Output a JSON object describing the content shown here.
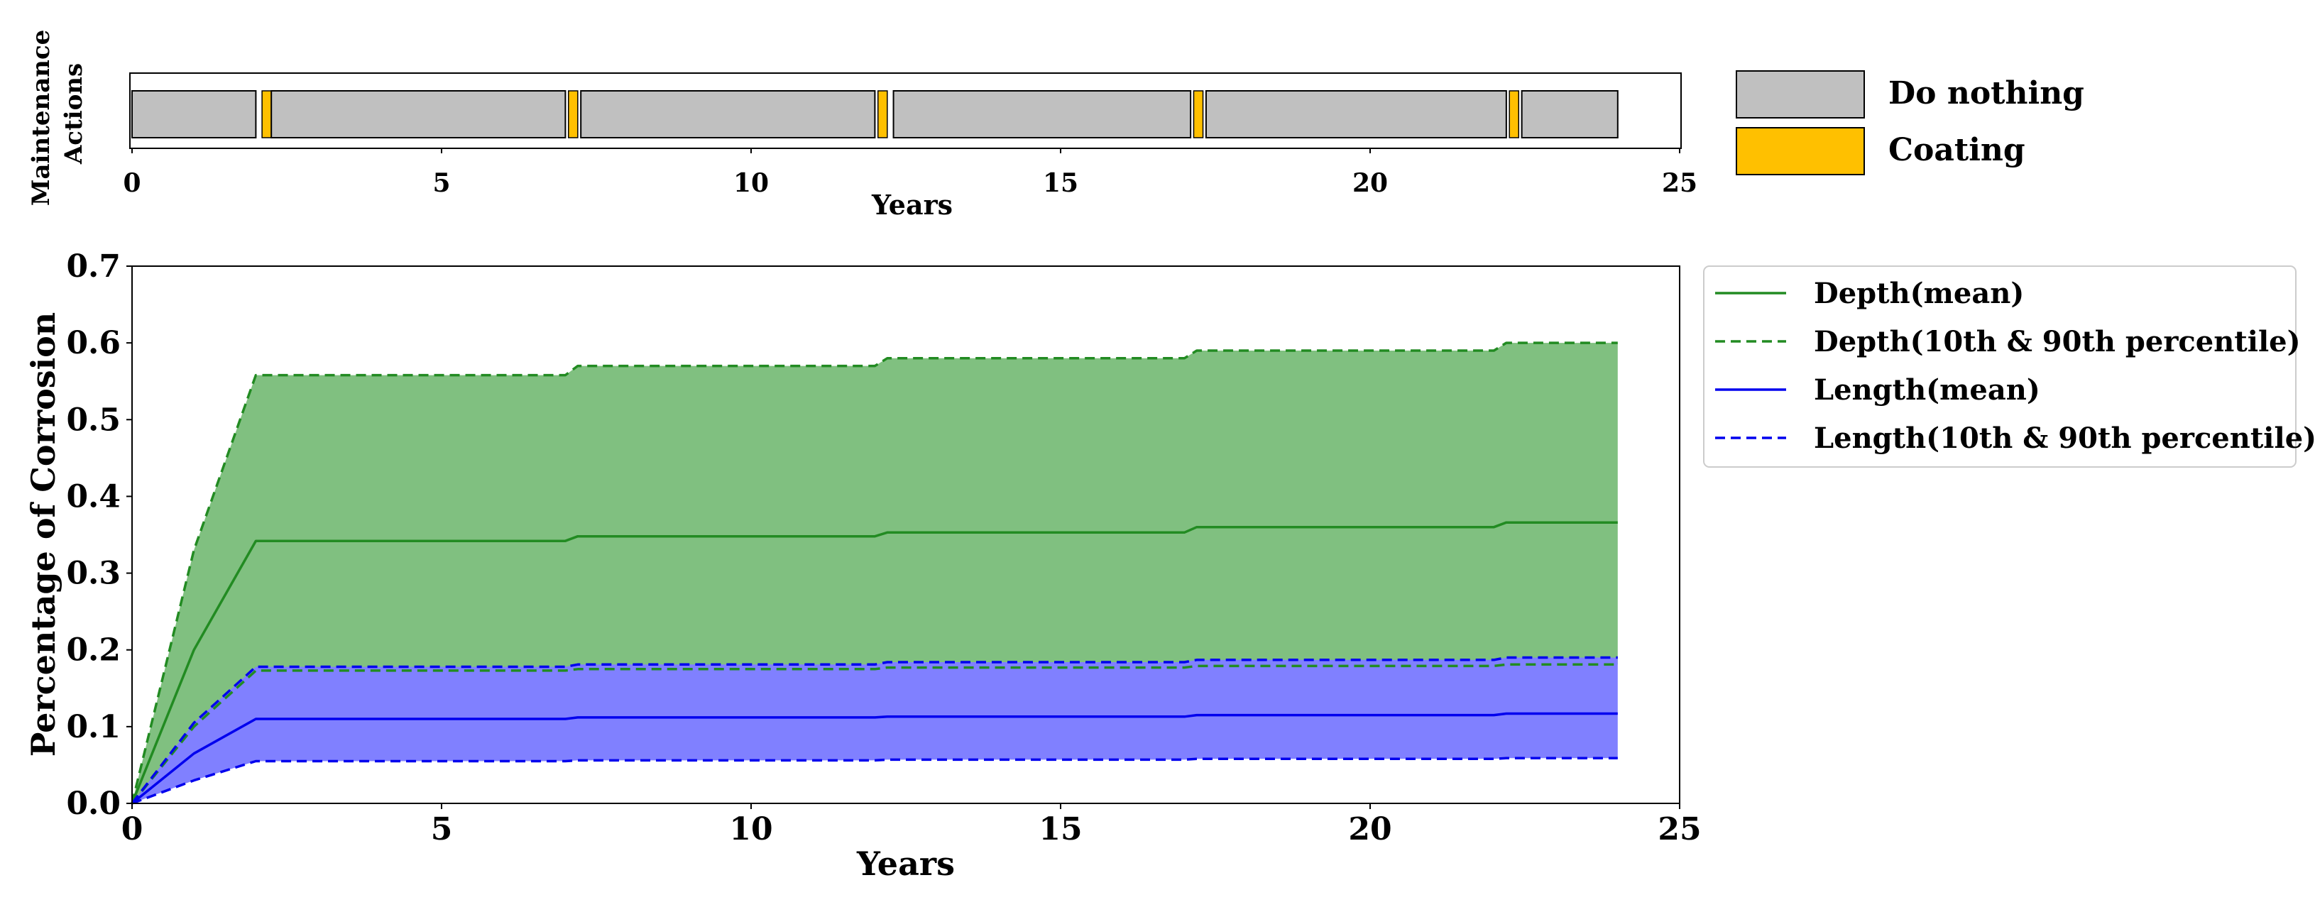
{
  "chart_data": [
    {
      "type": "bar",
      "subtype": "timeline",
      "title": "",
      "xlabel": "Years",
      "ylabel": "Maintenance Actions",
      "xlim": [
        0,
        25
      ],
      "xticks": [
        0,
        5,
        10,
        15,
        20,
        25
      ],
      "segments": [
        {
          "action": "Do nothing",
          "start": 0.0,
          "end": 2.0
        },
        {
          "action": "Coating",
          "start": 2.1,
          "end": 2.25
        },
        {
          "action": "Do nothing",
          "start": 2.25,
          "end": 7.0
        },
        {
          "action": "Coating",
          "start": 7.05,
          "end": 7.2
        },
        {
          "action": "Do nothing",
          "start": 7.25,
          "end": 12.0
        },
        {
          "action": "Coating",
          "start": 12.05,
          "end": 12.2
        },
        {
          "action": "Do nothing",
          "start": 12.3,
          "end": 17.1
        },
        {
          "action": "Coating",
          "start": 17.15,
          "end": 17.3
        },
        {
          "action": "Do nothing",
          "start": 17.35,
          "end": 22.2
        },
        {
          "action": "Coating",
          "start": 22.25,
          "end": 22.4
        },
        {
          "action": "Do nothing",
          "start": 22.45,
          "end": 24.0
        }
      ],
      "legend": {
        "position": "right",
        "entries": [
          {
            "label": "Do nothing",
            "color": "#c0c0c0"
          },
          {
            "label": "Coating",
            "color": "#ffc000"
          }
        ]
      }
    },
    {
      "type": "area",
      "title": "",
      "xlabel": "Years",
      "ylabel": "Percentage of Corrosion",
      "xlim": [
        0,
        25
      ],
      "ylim": [
        0,
        0.7
      ],
      "xticks": [
        0,
        5,
        10,
        15,
        20,
        25
      ],
      "yticks": [
        "0.0",
        "0.1",
        "0.2",
        "0.3",
        "0.4",
        "0.5",
        "0.6",
        "0.7"
      ],
      "grid": false,
      "legend_position": "upper right, outside plot",
      "x": [
        0,
        1,
        2,
        7,
        7.2,
        12,
        12.2,
        17,
        17.2,
        22,
        22.2,
        24
      ],
      "series": [
        {
          "name": "Depth(mean)",
          "style": "solid",
          "color": "#228b22",
          "values": [
            0,
            0.2,
            0.342,
            0.342,
            0.348,
            0.348,
            0.353,
            0.353,
            0.36,
            0.36,
            0.366,
            0.366
          ]
        },
        {
          "name": "Depth(10th & 90th percentile)",
          "style": "dashed",
          "color": "#228b22",
          "band": "upper",
          "values": [
            0,
            0.33,
            0.558,
            0.558,
            0.57,
            0.57,
            0.58,
            0.58,
            0.59,
            0.59,
            0.6,
            0.6
          ]
        },
        {
          "name": "Depth(10th & 90th percentile)",
          "style": "dashed",
          "color": "#228b22",
          "band": "lower",
          "values": [
            0,
            0.1,
            0.173,
            0.173,
            0.175,
            0.175,
            0.177,
            0.177,
            0.179,
            0.179,
            0.181,
            0.181
          ]
        },
        {
          "name": "Length(mean)",
          "style": "solid",
          "color": "#0000ee",
          "values": [
            0,
            0.065,
            0.11,
            0.11,
            0.112,
            0.112,
            0.113,
            0.113,
            0.115,
            0.115,
            0.117,
            0.117
          ]
        },
        {
          "name": "Length(10th & 90th percentile)",
          "style": "dashed",
          "color": "#0000ee",
          "band": "upper",
          "values": [
            0,
            0.105,
            0.178,
            0.178,
            0.181,
            0.181,
            0.184,
            0.184,
            0.187,
            0.187,
            0.19,
            0.19
          ]
        },
        {
          "name": "Length(10th & 90th percentile)",
          "style": "dashed",
          "color": "#0000ee",
          "band": "lower",
          "values": [
            0,
            0.03,
            0.055,
            0.055,
            0.056,
            0.056,
            0.057,
            0.057,
            0.058,
            0.058,
            0.059,
            0.059
          ]
        }
      ],
      "fills": [
        {
          "between": [
            "Depth upper",
            "Depth lower"
          ],
          "color": "#80c080"
        },
        {
          "between": [
            "Length upper",
            "Length lower"
          ],
          "color": "#8080ff"
        }
      ],
      "legend": [
        {
          "label": "Depth(mean)",
          "color": "#228b22",
          "style": "solid"
        },
        {
          "label": "Depth(10th & 90th percentile)",
          "color": "#228b22",
          "style": "dashed"
        },
        {
          "label": "Length(mean)",
          "color": "#0000ee",
          "style": "solid"
        },
        {
          "label": "Length(10th & 90th percentile)",
          "color": "#0000ee",
          "style": "dashed"
        }
      ]
    }
  ]
}
